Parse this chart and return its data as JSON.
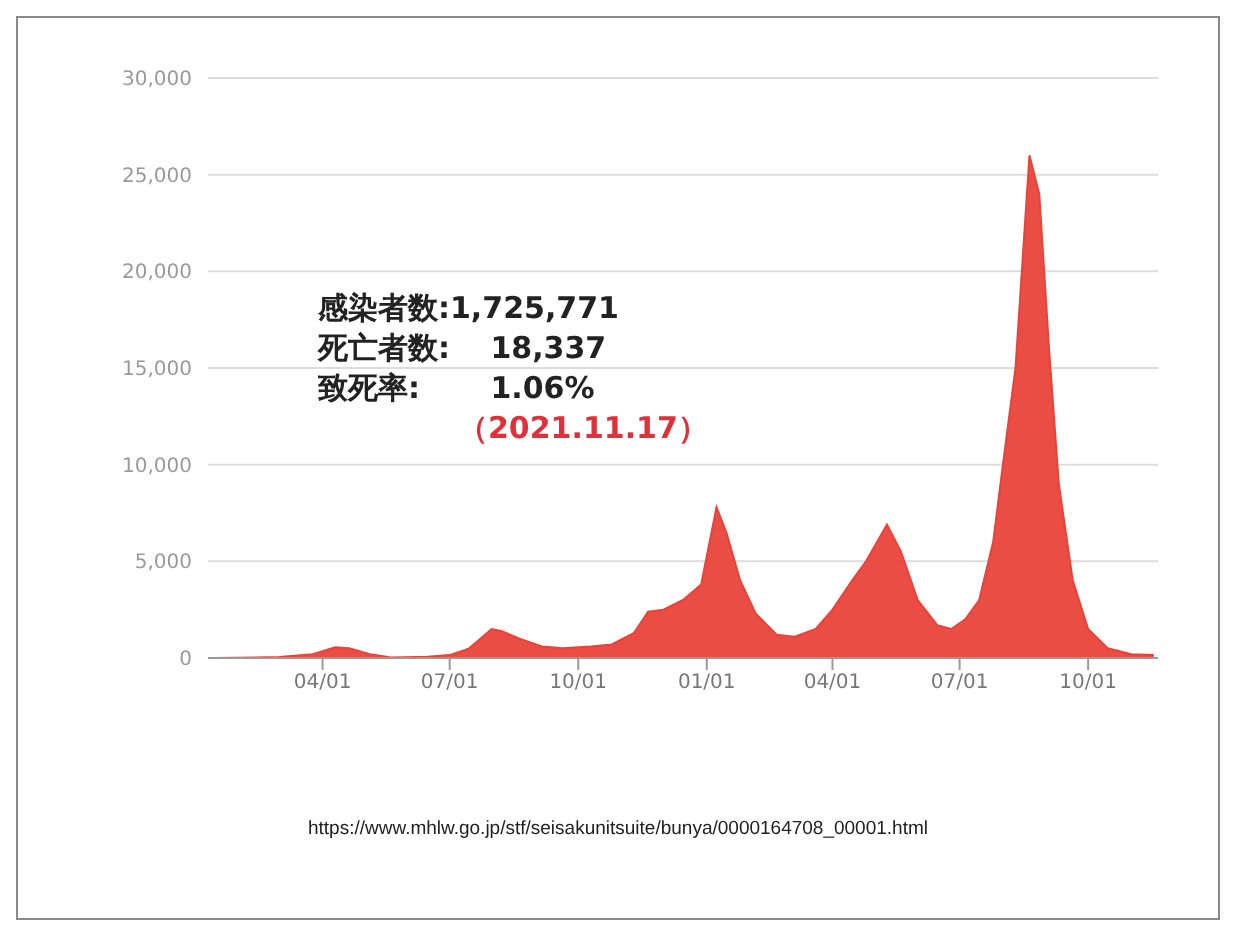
{
  "chart_data": {
    "type": "area",
    "x": [
      "2020-01-15",
      "2020-03-01",
      "2020-03-25",
      "2020-04-10",
      "2020-04-20",
      "2020-05-05",
      "2020-05-20",
      "2020-06-15",
      "2020-07-01",
      "2020-07-15",
      "2020-07-31",
      "2020-08-07",
      "2020-08-20",
      "2020-09-05",
      "2020-09-20",
      "2020-10-10",
      "2020-10-25",
      "2020-11-10",
      "2020-11-20",
      "2020-12-01",
      "2020-12-15",
      "2020-12-28",
      "2021-01-08",
      "2021-01-15",
      "2021-01-25",
      "2021-02-05",
      "2021-02-20",
      "2021-03-05",
      "2021-03-20",
      "2021-04-01",
      "2021-04-15",
      "2021-04-25",
      "2021-05-10",
      "2021-05-20",
      "2021-06-01",
      "2021-06-15",
      "2021-06-25",
      "2021-07-05",
      "2021-07-15",
      "2021-07-25",
      "2021-08-01",
      "2021-08-10",
      "2021-08-20",
      "2021-08-27",
      "2021-09-03",
      "2021-09-10",
      "2021-09-20",
      "2021-10-01",
      "2021-10-15",
      "2021-11-01",
      "2021-11-17"
    ],
    "series": [
      {
        "color": "#e8433a",
        "values": [
          0,
          50,
          200,
          550,
          500,
          200,
          30,
          60,
          150,
          500,
          1500,
          1400,
          1000,
          600,
          500,
          600,
          700,
          1300,
          2400,
          2500,
          3000,
          3800,
          7800,
          6500,
          4000,
          2300,
          1200,
          1100,
          1500,
          2500,
          4000,
          5000,
          6900,
          5500,
          3000,
          1700,
          1500,
          2000,
          3000,
          6000,
          10000,
          15000,
          26000,
          24000,
          16000,
          9000,
          4000,
          1500,
          500,
          200,
          150
        ]
      }
    ],
    "xlim": [
      "2020-01-10",
      "2021-11-20"
    ],
    "xticks": [
      {
        "value": "2020-04-01",
        "label": "04/01"
      },
      {
        "value": "2020-07-01",
        "label": "07/01"
      },
      {
        "value": "2020-10-01",
        "label": "10/01"
      },
      {
        "value": "2021-01-01",
        "label": "01/01"
      },
      {
        "value": "2021-04-01",
        "label": "04/01"
      },
      {
        "value": "2021-07-01",
        "label": "07/01"
      },
      {
        "value": "2021-10-01",
        "label": "10/01"
      }
    ],
    "ylim": [
      0,
      30000
    ],
    "yticks": [
      0,
      {
        "value": 5000,
        "label": "5,000"
      },
      {
        "value": 10000,
        "label": "10,000"
      },
      {
        "value": 15000,
        "label": "15,000"
      },
      {
        "value": 20000,
        "label": "20,000"
      },
      {
        "value": 25000,
        "label": "25,000"
      },
      {
        "value": 30000,
        "label": "30,000"
      }
    ],
    "grid": "y",
    "annotations": [
      "感染者数:1,725,771",
      "死亡者数:　 18,337",
      "致死率:　　 1.06%",
      "（2021.11.17）",
      "https://www.mhlw.go.jp/stf/seisakunitsuite/bunya/0000164708_00001.html"
    ]
  }
}
